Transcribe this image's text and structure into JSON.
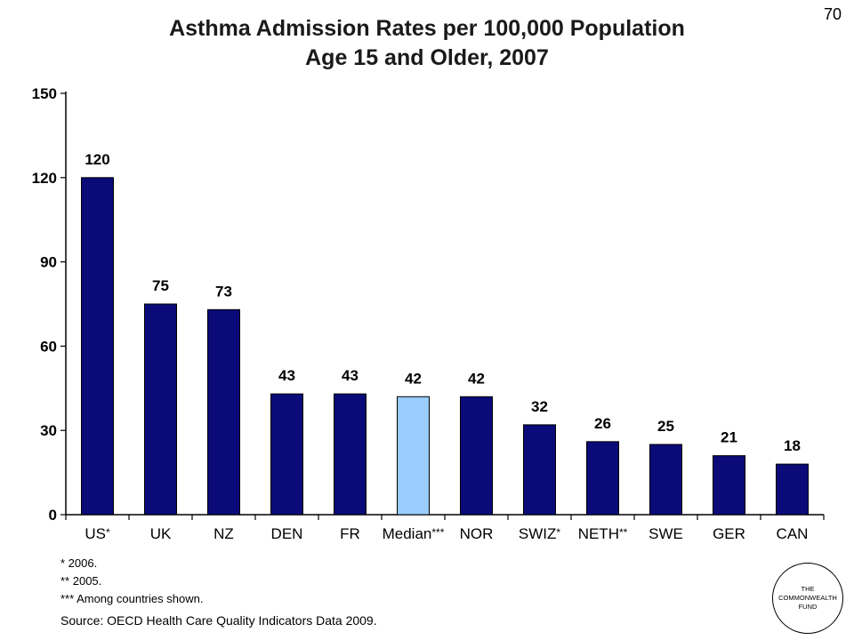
{
  "slide": {
    "number": "70",
    "title_line1": "Asthma Admission Rates per 100,000 Population",
    "title_line2": "Age 15 and Older, 2007"
  },
  "chart_data": {
    "type": "bar",
    "categories": [
      "US",
      "UK",
      "NZ",
      "DEN",
      "FR",
      "Median",
      "NOR",
      "SWIZ",
      "NETH",
      "SWE",
      "GER",
      "CAN"
    ],
    "category_markers": [
      "*",
      "",
      "",
      "",
      "",
      "***",
      "",
      "*",
      "**",
      "",
      "",
      ""
    ],
    "values": [
      120,
      75,
      73,
      43,
      43,
      42,
      42,
      32,
      26,
      25,
      21,
      18
    ],
    "data_labels": [
      "120",
      "75",
      "73",
      "43",
      "43",
      "42",
      "42",
      "32",
      "26",
      "25",
      "21",
      "18"
    ],
    "yticks": [
      0,
      30,
      60,
      90,
      120,
      150
    ],
    "ylim": [
      0,
      150
    ],
    "colors": {
      "bar": "#0a0a78",
      "highlight": "#99ccff",
      "highlight_index": 5
    }
  },
  "footnotes": [
    "* 2006.",
    "** 2005.",
    "*** Among countries shown."
  ],
  "source": "Source: OECD Health Care Quality Indicators Data 2009.",
  "logo": {
    "text": "THE\nCOMMONWEALTH\nFUND"
  }
}
